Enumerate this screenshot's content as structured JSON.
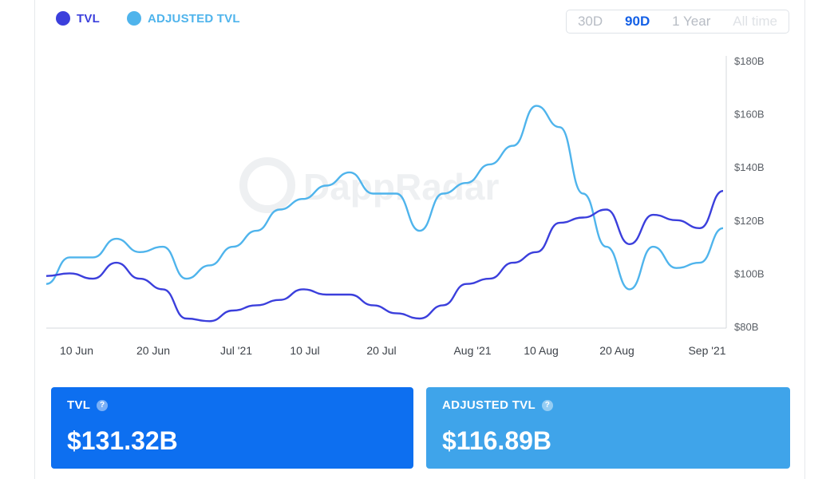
{
  "legend": {
    "tvl": "TVL",
    "adjusted": "ADJUSTED TVL"
  },
  "colors": {
    "tvl": "#3b3fdc",
    "adjusted": "#4fb4ec",
    "tvl_card": "#0d6ff0",
    "adjusted_card": "#3fa4ea"
  },
  "range_buttons": [
    "30D",
    "90D",
    "1 Year",
    "All time"
  ],
  "selected_range": "90D",
  "watermark": "DappRadar",
  "cards": {
    "tvl": {
      "label": "TVL",
      "value": "$131.32B"
    },
    "adjusted": {
      "label": "ADJUSTED TVL",
      "value": "$116.89B"
    }
  },
  "chart_data": {
    "type": "line",
    "ylim": [
      80,
      180
    ],
    "y_ticks": [
      80,
      100,
      120,
      140,
      160,
      180
    ],
    "y_tick_labels": [
      "$80B",
      "$100B",
      "$120B",
      "$140B",
      "$160B",
      "$180B"
    ],
    "y_unit": "B USD",
    "x_tick_labels": [
      "10 Jun",
      "20 Jun",
      "Jul '21",
      "10 Jul",
      "20 Jul",
      "Aug '21",
      "10 Aug",
      "20 Aug",
      "Sep '21"
    ],
    "x_range": [
      "2021-06-06",
      "2021-09-01"
    ],
    "x": [
      "2021-06-06",
      "2021-06-09",
      "2021-06-12",
      "2021-06-15",
      "2021-06-18",
      "2021-06-21",
      "2021-06-24",
      "2021-06-27",
      "2021-06-30",
      "2021-07-03",
      "2021-07-06",
      "2021-07-09",
      "2021-07-12",
      "2021-07-15",
      "2021-07-18",
      "2021-07-21",
      "2021-07-24",
      "2021-07-27",
      "2021-07-30",
      "2021-08-02",
      "2021-08-05",
      "2021-08-08",
      "2021-08-11",
      "2021-08-14",
      "2021-08-17",
      "2021-08-20",
      "2021-08-23",
      "2021-08-26",
      "2021-08-29",
      "2021-09-01"
    ],
    "series": [
      {
        "name": "TVL",
        "values": [
          99,
          100,
          98,
          104,
          98,
          94,
          83,
          82,
          86,
          88,
          90,
          94,
          92,
          92,
          88,
          85,
          83,
          88,
          96,
          98,
          104,
          108,
          119,
          121,
          124,
          111,
          122,
          120,
          117,
          131
        ]
      },
      {
        "name": "ADJUSTED TVL",
        "values": [
          96,
          106,
          106,
          113,
          108,
          110,
          98,
          103,
          110,
          116,
          124,
          128,
          133,
          138,
          130,
          130,
          116,
          130,
          134,
          141,
          148,
          163,
          155,
          130,
          110,
          94,
          110,
          102,
          104,
          117
        ]
      }
    ]
  }
}
